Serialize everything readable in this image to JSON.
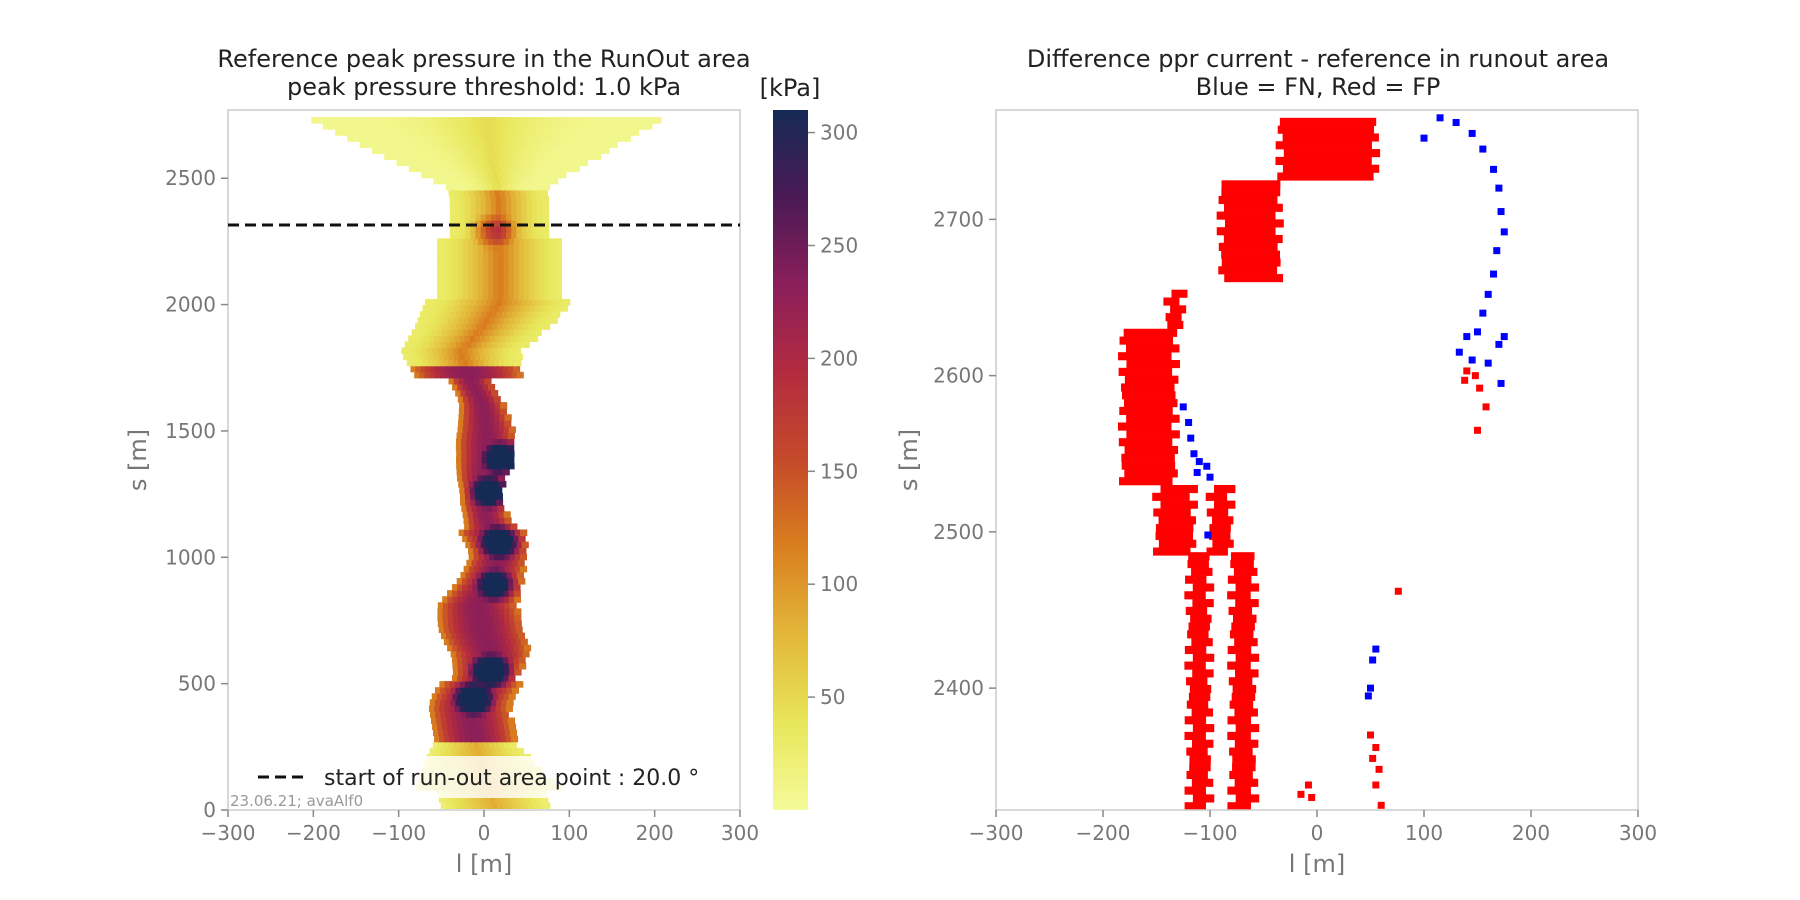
{
  "chart_data": [
    {
      "type": "heatmap",
      "title_line1": "Reference peak pressure in the RunOut area",
      "title_line2": "peak pressure threshold: 1.0 kPa",
      "xlabel": "l [m]",
      "ylabel": "s [m]",
      "xlim": [
        -300,
        300
      ],
      "ylim": [
        0,
        2770
      ],
      "x_ticks": [
        -300,
        -200,
        -100,
        0,
        100,
        200,
        300
      ],
      "x_tick_labels": [
        "−300",
        "−200",
        "−100",
        "0",
        "100",
        "200",
        "300"
      ],
      "y_ticks": [
        0,
        500,
        1000,
        1500,
        2000,
        2500
      ],
      "y_tick_labels": [
        "0",
        "500",
        "1000",
        "1500",
        "2000",
        "2500"
      ],
      "colorbar": {
        "label": "[kPa]",
        "range": [
          0,
          310
        ],
        "ticks": [
          50,
          100,
          150,
          200,
          250,
          300
        ],
        "tick_labels": [
          "50",
          "100",
          "150",
          "200",
          "250",
          "300"
        ],
        "colormap": [
          "#f5fb9a",
          "#e8e65a",
          "#e3b73a",
          "#d97f1f",
          "#c54a2a",
          "#b32b3f",
          "#8a1e5a",
          "#4a1a55",
          "#152a55"
        ]
      },
      "runout_line": {
        "s": 2315,
        "legend": "start of run-out area point : 20.0 °"
      },
      "footer": "23.06.21; avaAlf0",
      "grid": false,
      "legend_position": "lower-center",
      "centerline": [
        [
          0,
          10
        ],
        [
          100,
          0
        ],
        [
          200,
          -10
        ],
        [
          300,
          -15
        ],
        [
          400,
          -20
        ],
        [
          450,
          -15
        ],
        [
          520,
          0
        ],
        [
          600,
          5
        ],
        [
          700,
          -5
        ],
        [
          800,
          -10
        ],
        [
          900,
          5
        ],
        [
          1000,
          15
        ],
        [
          1100,
          5
        ],
        [
          1200,
          -5
        ],
        [
          1300,
          -5
        ],
        [
          1400,
          0
        ],
        [
          1500,
          0
        ],
        [
          1600,
          -5
        ],
        [
          1700,
          -20
        ],
        [
          1800,
          -30
        ],
        [
          1900,
          -5
        ],
        [
          2000,
          15
        ],
        [
          2100,
          15
        ],
        [
          2200,
          15
        ],
        [
          2300,
          15
        ],
        [
          2400,
          15
        ],
        [
          2500,
          10
        ],
        [
          2600,
          5
        ],
        [
          2700,
          0
        ]
      ],
      "pressure_peaks": [
        {
          "l": 20,
          "s": 1380,
          "kPa": 310
        },
        {
          "l": 5,
          "s": 540,
          "kPa": 300
        },
        {
          "l": -15,
          "s": 430,
          "kPa": 290
        },
        {
          "l": 15,
          "s": 1050,
          "kPa": 280
        },
        {
          "l": 5,
          "s": 1250,
          "kPa": 280
        },
        {
          "l": 10,
          "s": 880,
          "kPa": 250
        },
        {
          "l": 10,
          "s": 2280,
          "kPa": 120
        }
      ]
    },
    {
      "type": "scatter",
      "title_line1": "Difference ppr current - reference in runout area",
      "title_line2": "Blue = FN, Red = FP",
      "xlabel": "l [m]",
      "ylabel": "s [m]",
      "xlim": [
        -300,
        300
      ],
      "ylim": [
        2322,
        2770
      ],
      "x_ticks": [
        -300,
        -200,
        -100,
        0,
        100,
        200,
        300
      ],
      "x_tick_labels": [
        "−300",
        "−200",
        "−100",
        "0",
        "100",
        "200",
        "300"
      ],
      "y_ticks": [
        2400,
        2500,
        2600,
        2700
      ],
      "y_tick_labels": [
        "2400",
        "2500",
        "2600",
        "2700"
      ],
      "grid": false,
      "colors": {
        "FN": "#0000ff",
        "FP": "#ff0000"
      },
      "series": [
        {
          "name": "Blue = FN",
          "points": [
            [
              115,
              2765
            ],
            [
              130,
              2762
            ],
            [
              145,
              2755
            ],
            [
              155,
              2745
            ],
            [
              165,
              2732
            ],
            [
              170,
              2720
            ],
            [
              172,
              2705
            ],
            [
              175,
              2692
            ],
            [
              168,
              2680
            ],
            [
              165,
              2665
            ],
            [
              160,
              2652
            ],
            [
              155,
              2640
            ],
            [
              150,
              2628
            ],
            [
              100,
              2752
            ],
            [
              145,
              2610
            ],
            [
              140,
              2625
            ],
            [
              133,
              2615
            ],
            [
              170,
              2620
            ],
            [
              175,
              2625
            ],
            [
              172,
              2595
            ],
            [
              160,
              2608
            ],
            [
              -125,
              2580
            ],
            [
              -120,
              2570
            ],
            [
              -118,
              2560
            ],
            [
              -115,
              2550
            ],
            [
              -110,
              2545
            ],
            [
              -112,
              2538
            ],
            [
              -103,
              2542
            ],
            [
              -100,
              2535
            ],
            [
              -102,
              2498
            ],
            [
              55,
              2425
            ],
            [
              52,
              2418
            ],
            [
              50,
              2400
            ],
            [
              48,
              2395
            ]
          ]
        },
        {
          "name": "Red = FP",
          "points": [
            [
              140,
              2603
            ],
            [
              148,
              2600
            ],
            [
              152,
              2592
            ],
            [
              158,
              2580
            ],
            [
              150,
              2565
            ],
            [
              138,
              2597
            ],
            [
              76,
              2462
            ],
            [
              50,
              2370
            ],
            [
              55,
              2362
            ],
            [
              52,
              2355
            ],
            [
              58,
              2348
            ],
            [
              55,
              2338
            ],
            [
              60,
              2325
            ],
            [
              -8,
              2338
            ],
            [
              -5,
              2330
            ],
            [
              -15,
              2332
            ]
          ]
        }
      ],
      "fp_regions": [
        {
          "s_min": 2322,
          "s_max": 2485,
          "l_edges": [
            [
              -120,
              -100
            ],
            [
              -80,
              -58
            ]
          ]
        },
        {
          "s_min": 2485,
          "s_max": 2530,
          "l_edges": [
            [
              -150,
              -115
            ],
            [
              -100,
              -80
            ]
          ]
        },
        {
          "s_min": 2530,
          "s_max": 2630,
          "l_edges": [
            [
              -182,
              -132
            ]
          ]
        },
        {
          "s_min": 2630,
          "s_max": 2655,
          "l_edges": [
            [
              -140,
              -125
            ]
          ]
        },
        {
          "s_min": 2660,
          "s_max": 2725,
          "l_edges": [
            [
              -90,
              -35
            ]
          ]
        },
        {
          "s_min": 2725,
          "s_max": 2765,
          "l_edges": [
            [
              -35,
              55
            ]
          ]
        }
      ]
    }
  ]
}
